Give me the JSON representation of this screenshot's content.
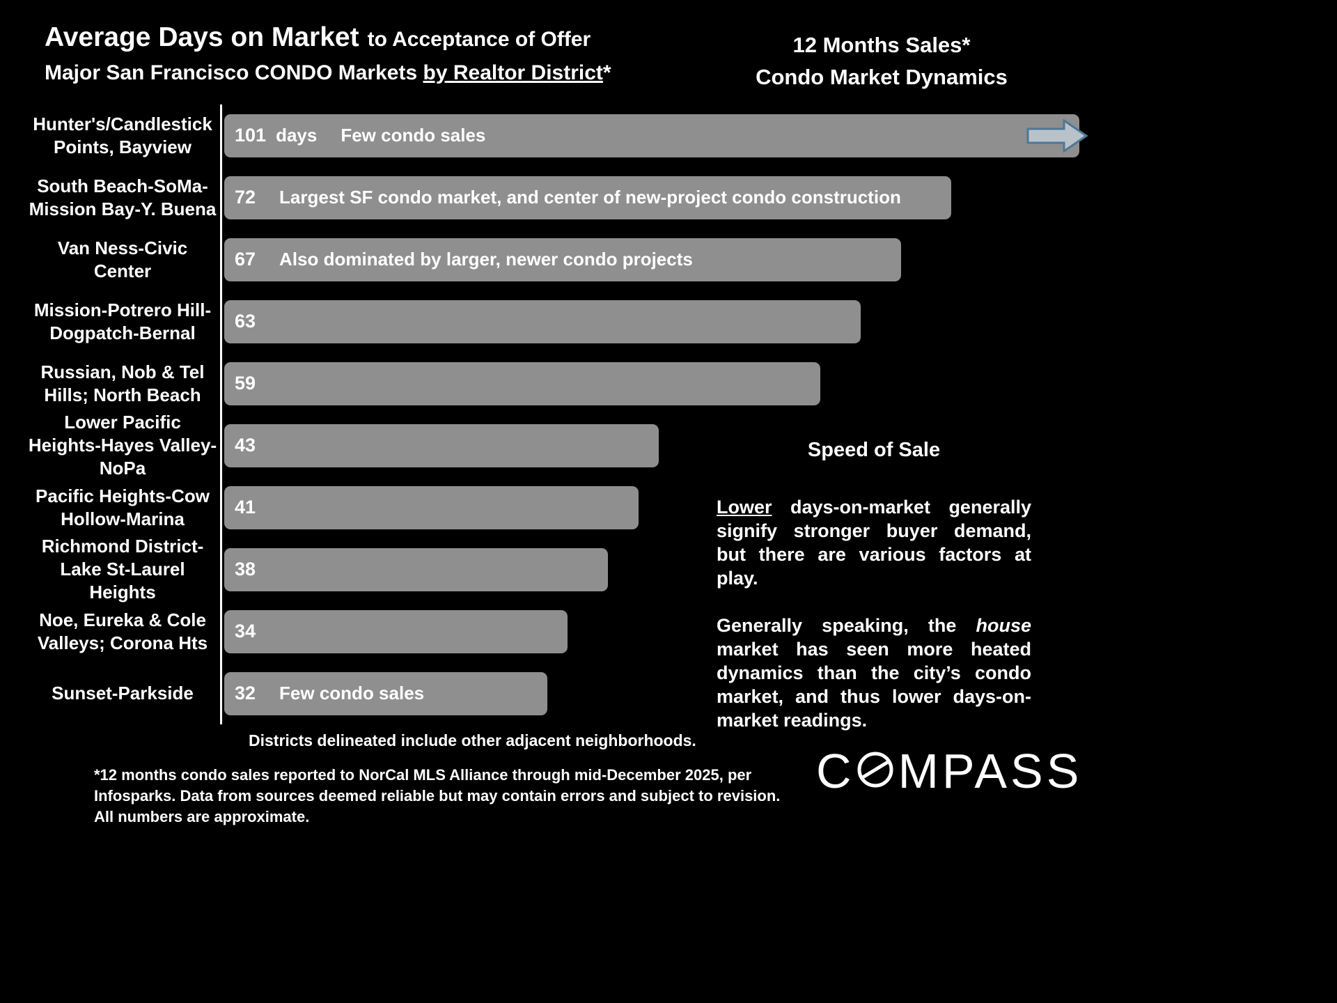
{
  "colors": {
    "background": "#000000",
    "bar": "#8f8f8f",
    "text": "#ffffff",
    "arrow_fill": "#b9c2ca",
    "arrow_stroke": "#4e7795"
  },
  "header": {
    "title_main": "Average Days on Market",
    "title_tail": "to Acceptance of Offer",
    "subtitle_prefix": "Major San Francisco CONDO Markets ",
    "subtitle_underlined": "by Realtor District",
    "subtitle_suffix": "*",
    "right_line1": "12 Months Sales*",
    "right_line2": "Condo Market Dynamics"
  },
  "chart_data": {
    "type": "bar",
    "orientation": "horizontal",
    "title": "Average Days on Market to Acceptance of Offer, Major San Francisco CONDO Markets by Realtor District",
    "unit": "days",
    "xlim": [
      0,
      101
    ],
    "categories": [
      "Hunter's/Candlestick Points, Bayview",
      "South Beach-SoMa-Mission Bay-Y. Buena",
      "Van Ness-Civic Center",
      "Mission-Potrero Hill-Dogpatch-Bernal",
      "Russian, Nob & Tel Hills; North Beach",
      "Lower Pacific Heights-Hayes Valley-NoPa",
      "Pacific Heights-Cow Hollow-Marina",
      "Richmond District-Lake St-Laurel Heights",
      "Noe, Eureka & Cole Valleys; Corona Hts",
      "Sunset-Parkside"
    ],
    "values": [
      101,
      72,
      67,
      63,
      59,
      43,
      41,
      38,
      34,
      32
    ],
    "value_suffixes": [
      "days",
      "",
      "",
      "",
      "",
      "",
      "",
      "",
      "",
      ""
    ],
    "annotations": [
      "Few condo sales",
      "Largest SF condo market, and center of new-project condo construction",
      "Also dominated by larger, newer condo projects",
      "",
      "",
      "",
      "",
      "",
      "",
      "Few condo sales"
    ],
    "overflow_arrow": [
      true,
      false,
      false,
      false,
      false,
      false,
      false,
      false,
      false,
      false
    ]
  },
  "side_panel": {
    "heading": "Speed of Sale",
    "p1_underlined": "Lower",
    "p1_rest": "days-on-market generally signify stronger buyer demand, but there are various factors at play.",
    "p2_before_italic": "Generally speaking, the",
    "p2_italic": "house",
    "p2_after_italic": "market has seen more heated dynamics than the city’s condo market, and thus lower days-on-market readings."
  },
  "footnotes": {
    "note1": "Districts delineated include other adjacent neighborhoods.",
    "note2": "*12 months condo sales reported to NorCal MLS Alliance through mid-December 2025, per Infosparks. Data from sources deemed reliable but may contain errors and subject to revision. All numbers are approximate."
  },
  "logo_text": "COMPASS"
}
